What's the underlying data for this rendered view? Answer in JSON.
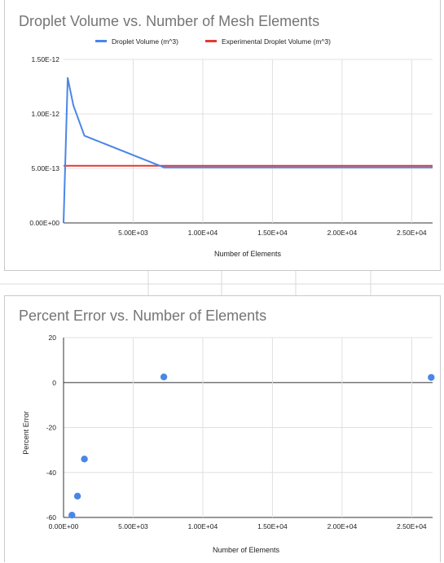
{
  "chart_data": [
    {
      "type": "line",
      "title": "Droplet Volume vs. Number of Mesh Elements",
      "xlabel": "Number of Elements",
      "ylabel": "",
      "xlim": [
        0,
        26500
      ],
      "ylim": [
        0,
        1.5e-12
      ],
      "x_ticks": [
        5000,
        10000,
        15000,
        20000,
        25000
      ],
      "x_tick_labels": [
        "5.00E+03",
        "1.00E+04",
        "1.50E+04",
        "2.00E+04",
        "2.50E+04"
      ],
      "y_ticks": [
        0,
        5e-13,
        1e-12,
        1.5e-12
      ],
      "y_tick_labels": [
        "0.00E+00",
        "5.00E-13",
        "1.00E-12",
        "1.50E-12"
      ],
      "grid": true,
      "legend_position": "top",
      "series": [
        {
          "name": "Droplet Volume (m^3)",
          "color": "#4a86e8",
          "x": [
            0,
            300,
            700,
            1500,
            7200,
            26500
          ],
          "y": [
            0,
            1.33e-12,
            1.08e-12,
            8e-13,
            5.1e-13,
            5.1e-13
          ]
        },
        {
          "name": "Experimental Droplet Volume (m^3)",
          "color": "#e53935",
          "x": [
            0,
            26500
          ],
          "y": [
            5.25e-13,
            5.25e-13
          ]
        }
      ]
    },
    {
      "type": "scatter",
      "title": "Percent Error vs. Number of Elements",
      "xlabel": "Number of Elements",
      "ylabel": "Percent Error",
      "xlim": [
        0,
        26500
      ],
      "ylim": [
        -60,
        20
      ],
      "x_ticks": [
        0,
        5000,
        10000,
        15000,
        20000,
        25000
      ],
      "x_tick_labels": [
        "0.00E+00",
        "5.00E+03",
        "1.00E+04",
        "1.50E+04",
        "2.00E+04",
        "2.50E+04"
      ],
      "y_ticks": [
        20,
        0,
        -20,
        -40,
        -60
      ],
      "y_tick_labels": [
        "20",
        "0",
        "-20",
        "-40",
        "-60"
      ],
      "grid": true,
      "series": [
        {
          "color": "#4a86e8",
          "x": [
            600,
            1000,
            1500,
            7200,
            26400
          ],
          "y": [
            -59,
            -50.5,
            -34,
            2.5,
            2.3
          ]
        }
      ]
    }
  ]
}
